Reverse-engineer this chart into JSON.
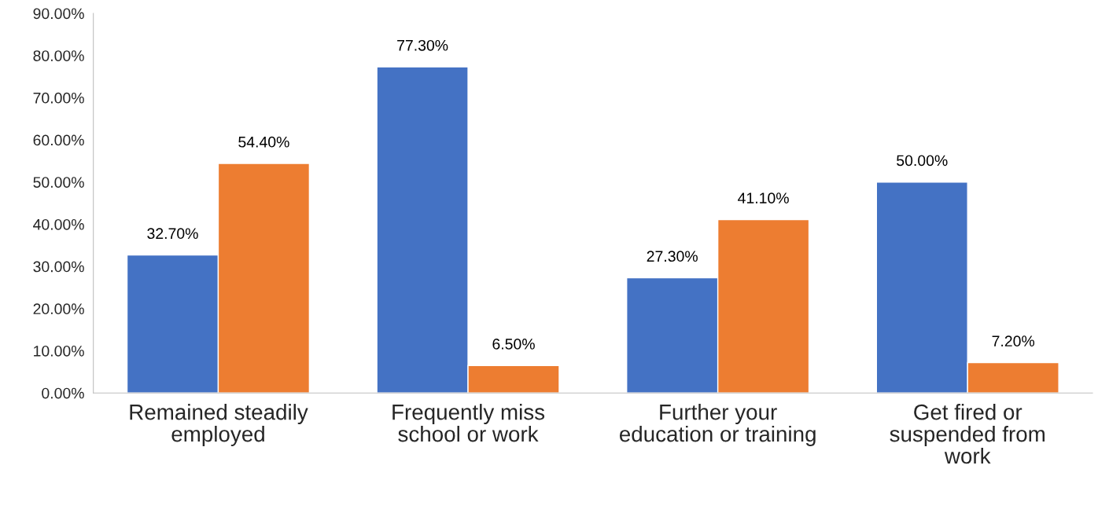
{
  "chart_data": {
    "type": "bar",
    "categories": [
      "Remained steadily\nemployed",
      "Frequently miss\nschool or work",
      "Further your\neducation or training",
      "Get fired or\nsuspended from\nwork"
    ],
    "series": [
      {
        "color": "#4472c4",
        "values": [
          32.7,
          77.3,
          27.3,
          50.0
        ],
        "value_labels": [
          "32.70%",
          "77.30%",
          "27.30%",
          "50.00%"
        ]
      },
      {
        "color": "#ed7d31",
        "values": [
          54.4,
          6.5,
          41.1,
          7.2
        ],
        "value_labels": [
          "54.40%",
          "6.50%",
          "41.10%",
          "7.20%"
        ]
      }
    ],
    "ylim": [
      0,
      90
    ],
    "yticks": [
      {
        "value": 0,
        "label": "0.00%"
      },
      {
        "value": 10,
        "label": "10.00%"
      },
      {
        "value": 20,
        "label": "20.00%"
      },
      {
        "value": 30,
        "label": "30.00%"
      },
      {
        "value": 40,
        "label": "40.00%"
      },
      {
        "value": 50,
        "label": "50.00%"
      },
      {
        "value": 60,
        "label": "60.00%"
      },
      {
        "value": 70,
        "label": "70.00%"
      },
      {
        "value": 80,
        "label": "80.00%"
      },
      {
        "value": 90,
        "label": "90.00%"
      }
    ],
    "grid": false,
    "legend": false
  }
}
